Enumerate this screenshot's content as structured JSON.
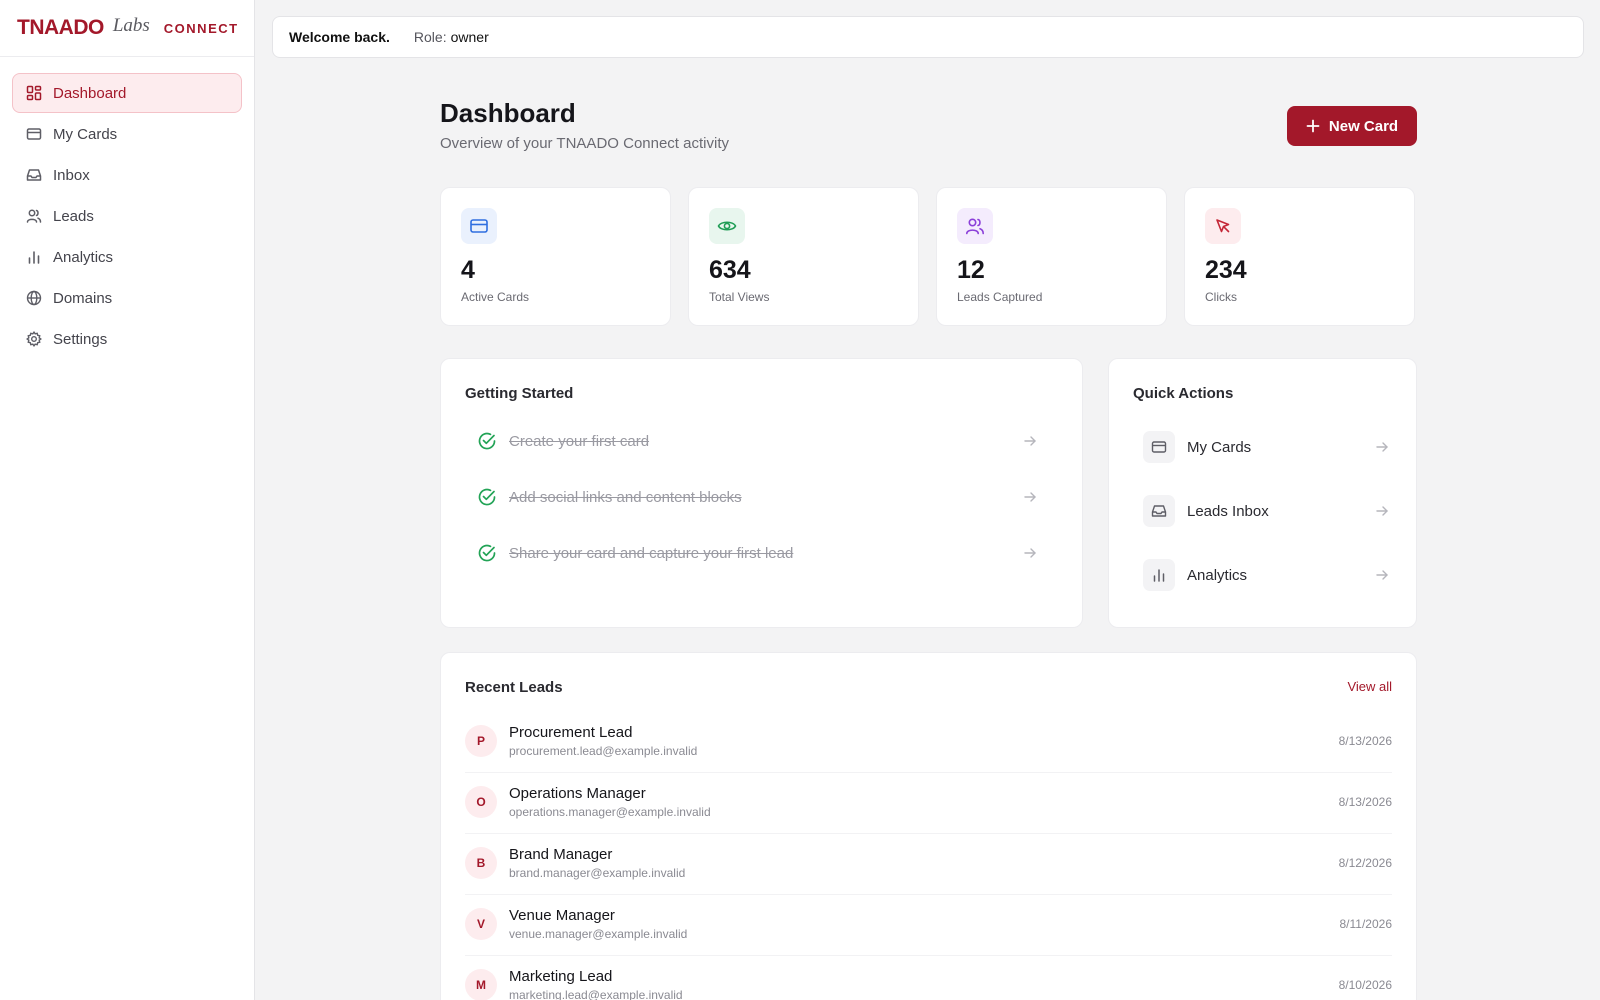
{
  "brand": {
    "wordmark": "TNAADO",
    "labs": "Labs",
    "connect": "CONNECT",
    "color": "#a3182a"
  },
  "sidebar": {
    "items": [
      {
        "label": "Dashboard",
        "icon": "dashboard-icon",
        "active": true
      },
      {
        "label": "My Cards",
        "icon": "card-icon",
        "active": false
      },
      {
        "label": "Inbox",
        "icon": "inbox-icon",
        "active": false
      },
      {
        "label": "Leads",
        "icon": "users-icon",
        "active": false
      },
      {
        "label": "Analytics",
        "icon": "bar-chart-icon",
        "active": false
      },
      {
        "label": "Domains",
        "icon": "globe-icon",
        "active": false
      },
      {
        "label": "Settings",
        "icon": "gear-icon",
        "active": false
      }
    ]
  },
  "topbar": {
    "welcome": "Welcome back.",
    "role_label": "Role:",
    "role_value": "owner"
  },
  "header": {
    "title": "Dashboard",
    "subtitle": "Overview of your TNAADO Connect activity",
    "new_card_label": "New Card"
  },
  "stats": [
    {
      "value": "4",
      "label": "Active Cards",
      "icon": "card-icon",
      "color": "#2f6fe0"
    },
    {
      "value": "634",
      "label": "Total Views",
      "icon": "eye-icon",
      "color": "#1f9d55"
    },
    {
      "value": "12",
      "label": "Leads Captured",
      "icon": "users-icon",
      "color": "#8b3fd9"
    },
    {
      "value": "234",
      "label": "Clicks",
      "icon": "cursor-icon",
      "color": "#c42636"
    }
  ],
  "getting_started": {
    "title": "Getting Started",
    "items": [
      {
        "label": "Create your first card",
        "done": true
      },
      {
        "label": "Add social links and content blocks",
        "done": true
      },
      {
        "label": "Share your card and capture your first lead",
        "done": true
      }
    ]
  },
  "quick_actions": {
    "title": "Quick Actions",
    "items": [
      {
        "label": "My Cards",
        "icon": "card-icon"
      },
      {
        "label": "Leads Inbox",
        "icon": "inbox-icon"
      },
      {
        "label": "Analytics",
        "icon": "bar-chart-icon"
      }
    ]
  },
  "recent_leads": {
    "title": "Recent Leads",
    "view_all": "View all",
    "rows": [
      {
        "initial": "P",
        "name": "Procurement Lead",
        "email": "procurement.lead@example.invalid",
        "date": "8/13/2026"
      },
      {
        "initial": "O",
        "name": "Operations Manager",
        "email": "operations.manager@example.invalid",
        "date": "8/13/2026"
      },
      {
        "initial": "B",
        "name": "Brand Manager",
        "email": "brand.manager@example.invalid",
        "date": "8/12/2026"
      },
      {
        "initial": "V",
        "name": "Venue Manager",
        "email": "venue.manager@example.invalid",
        "date": "8/11/2026"
      },
      {
        "initial": "M",
        "name": "Marketing Lead",
        "email": "marketing.lead@example.invalid",
        "date": "8/10/2026"
      }
    ]
  }
}
